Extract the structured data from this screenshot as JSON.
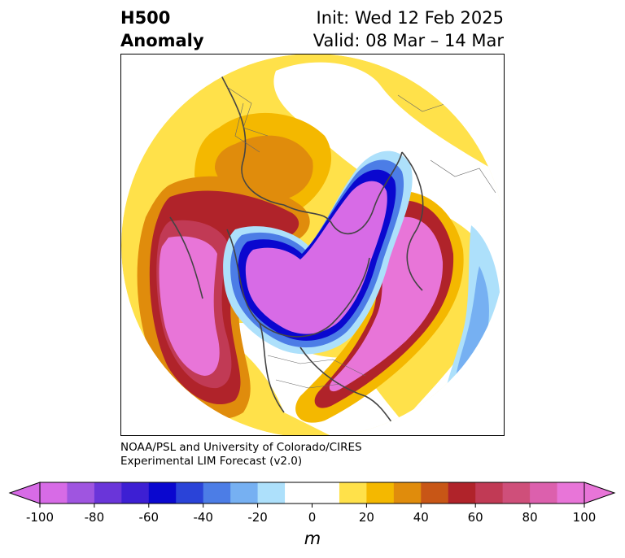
{
  "title": {
    "left_line1": "H500",
    "left_line2": "Anomaly",
    "right_line1": "Init: Wed 12 Feb 2025",
    "right_line2": "Valid: 08 Mar – 14 Mar"
  },
  "credit": {
    "line1": "NOAA/PSL and University of Colorado/CIRES",
    "line2": "Experimental LIM Forecast (v2.0)"
  },
  "map": {
    "projection": "north polar stereographic",
    "field": "500 hPa geopotential height anomaly"
  },
  "colorbar": {
    "unit_label": "m",
    "ticks": [
      "-100",
      "-80",
      "-60",
      "-40",
      "-20",
      "0",
      "20",
      "40",
      "60",
      "80",
      "100"
    ],
    "levels": [
      -100,
      -90,
      -80,
      -70,
      -60,
      -50,
      -40,
      -30,
      -20,
      -10,
      10,
      20,
      30,
      40,
      50,
      60,
      70,
      80,
      90,
      100
    ],
    "colors": [
      "#d76be6",
      "#9f55e0",
      "#6a35d9",
      "#3d1fd3",
      "#0a07cf",
      "#2a43d8",
      "#4c7de6",
      "#76b0f2",
      "#ade0fb",
      "#ffffff",
      "#ffe14a",
      "#f4b800",
      "#e08c0c",
      "#c85616",
      "#b0232a",
      "#c13a55",
      "#cf4f7a",
      "#dc60ad",
      "#e875d8"
    ],
    "extend_min_color": "#d76be6",
    "extend_max_color": "#e875d8"
  }
}
